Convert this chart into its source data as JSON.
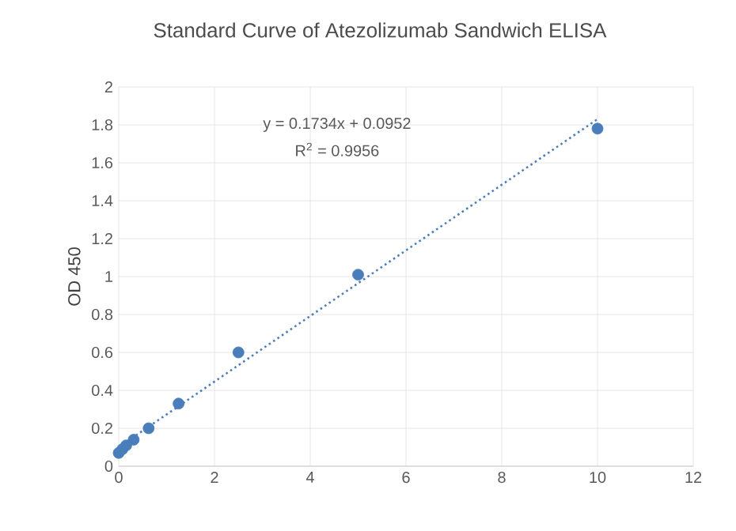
{
  "chart_data": {
    "type": "scatter",
    "title": "Standard Curve of Atezolizumab Sandwich ELISA",
    "ylabel": "OD 450",
    "series": [
      {
        "color": "#4a7ebb",
        "marker": "circle",
        "x": [
          0,
          0.078,
          0.156,
          0.3125,
          0.625,
          1.25,
          2.5,
          5,
          10
        ],
        "values": [
          0.07,
          0.09,
          0.11,
          0.14,
          0.2,
          0.33,
          0.6,
          1.01,
          1.78
        ]
      },
      {
        "type": "line",
        "color": "#4a7ebb",
        "line_style": "dotted",
        "marker": "none",
        "x": [
          0,
          10
        ],
        "values": [
          0.1,
          1.83
        ]
      }
    ],
    "annotations": [
      "y = 0.1734x + 0.0952",
      "R$^{2}$ = 0.9956"
    ],
    "xlim": [
      0,
      12
    ],
    "xticks": [
      0,
      2,
      4,
      6,
      8,
      10,
      12
    ],
    "ylim": [
      0,
      2
    ],
    "yticks": [
      0,
      0.2,
      0.4,
      0.6,
      0.8,
      1,
      1.2,
      1.4,
      1.6,
      1.8,
      2
    ],
    "grid": true
  }
}
